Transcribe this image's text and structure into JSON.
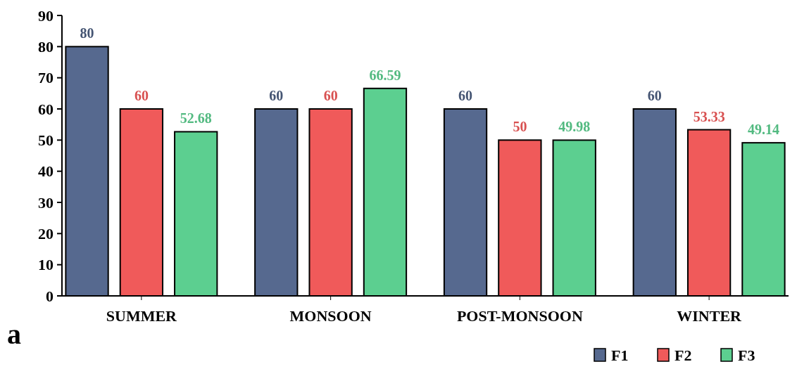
{
  "chart_data": {
    "type": "bar",
    "categories": [
      "SUMMER",
      "MONSOON",
      "POST-MONSOON",
      "WINTER"
    ],
    "series": [
      {
        "name": "F1",
        "color": "#56698f",
        "values": [
          80,
          60,
          60,
          60
        ]
      },
      {
        "name": "F2",
        "color": "#f05a5a",
        "values": [
          60,
          60,
          50,
          53.33
        ]
      },
      {
        "name": "F3",
        "color": "#5ccf90",
        "values": [
          52.68,
          66.59,
          49.98,
          49.14
        ]
      }
    ],
    "ylim": [
      0,
      90
    ],
    "yticks": [
      0,
      10,
      20,
      30,
      40,
      50,
      60,
      70,
      80,
      90
    ],
    "data_labels": true,
    "grid": false,
    "legend": "bottom right",
    "annotations": [
      "a"
    ]
  }
}
